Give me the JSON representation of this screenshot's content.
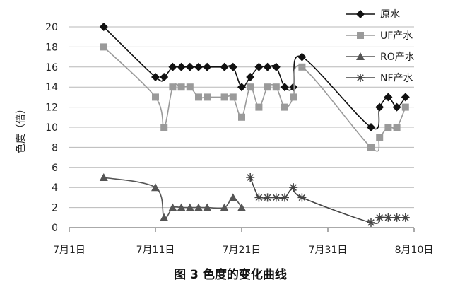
{
  "chart_data": {
    "type": "line",
    "title": "",
    "caption": "图 3  色度的变化曲线",
    "xlabel": "",
    "ylabel": "色度（倍）",
    "x_ticks": [
      {
        "day": 1,
        "label": "7月1日"
      },
      {
        "day": 11,
        "label": "7月11日"
      },
      {
        "day": 21,
        "label": "7月21日"
      },
      {
        "day": 31,
        "label": "7月31日"
      },
      {
        "day": 41,
        "label": "8月10日"
      }
    ],
    "xlim": [
      1,
      41
    ],
    "ylim": [
      0,
      20
    ],
    "y_ticks": [
      0,
      2,
      4,
      6,
      8,
      10,
      12,
      14,
      16,
      18,
      20
    ],
    "grid": "horizontal",
    "legend_position": "top-right",
    "series": [
      {
        "name": "原水",
        "marker": "diamond",
        "color": "#111111",
        "points": [
          [
            5,
            20
          ],
          [
            11,
            15
          ],
          [
            12,
            15
          ],
          [
            13,
            16
          ],
          [
            14,
            16
          ],
          [
            15,
            16
          ],
          [
            16,
            16
          ],
          [
            17,
            16
          ],
          [
            19,
            16
          ],
          [
            20,
            16
          ],
          [
            21,
            14
          ],
          [
            22,
            15
          ],
          [
            23,
            16
          ],
          [
            24,
            16
          ],
          [
            25,
            16
          ],
          [
            26,
            14
          ],
          [
            27,
            14
          ],
          [
            28,
            17
          ],
          [
            36,
            10
          ],
          [
            37,
            12
          ],
          [
            38,
            13
          ],
          [
            39,
            12
          ],
          [
            40,
            13
          ]
        ]
      },
      {
        "name": "UF产水",
        "marker": "square",
        "color": "#9a9a9a",
        "points": [
          [
            5,
            18
          ],
          [
            11,
            13
          ],
          [
            12,
            10
          ],
          [
            13,
            14
          ],
          [
            14,
            14
          ],
          [
            15,
            14
          ],
          [
            16,
            13
          ],
          [
            17,
            13
          ],
          [
            19,
            13
          ],
          [
            20,
            13
          ],
          [
            21,
            11
          ],
          [
            22,
            14
          ],
          [
            23,
            12
          ],
          [
            24,
            14
          ],
          [
            25,
            14
          ],
          [
            26,
            12
          ],
          [
            27,
            13
          ],
          [
            28,
            16
          ],
          [
            36,
            8
          ],
          [
            37,
            9
          ],
          [
            38,
            10
          ],
          [
            39,
            10
          ],
          [
            40,
            12
          ]
        ]
      },
      {
        "name": "RO产水",
        "marker": "triangle",
        "color": "#555555",
        "points": [
          [
            5,
            5
          ],
          [
            11,
            4
          ],
          [
            12,
            1
          ],
          [
            13,
            2
          ],
          [
            14,
            2
          ],
          [
            15,
            2
          ],
          [
            16,
            2
          ],
          [
            17,
            2
          ],
          [
            19,
            2
          ],
          [
            20,
            3
          ],
          [
            21,
            2
          ]
        ]
      },
      {
        "name": "NF产水",
        "marker": "asterisk",
        "color": "#444444",
        "points": [
          [
            22,
            5
          ],
          [
            23,
            3
          ],
          [
            24,
            3
          ],
          [
            25,
            3
          ],
          [
            26,
            3
          ],
          [
            27,
            4
          ],
          [
            28,
            3
          ],
          [
            36,
            0.5
          ],
          [
            37,
            1
          ],
          [
            38,
            1
          ],
          [
            39,
            1
          ],
          [
            40,
            1
          ]
        ]
      }
    ]
  }
}
